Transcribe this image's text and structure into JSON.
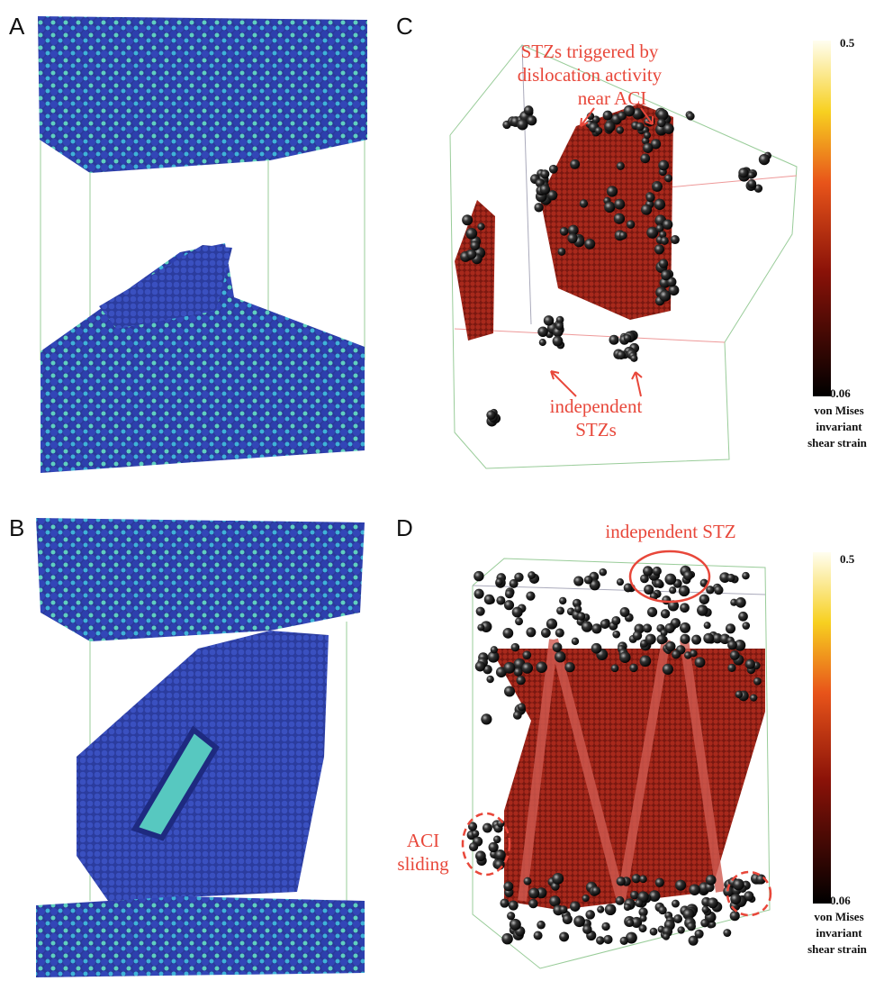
{
  "panels": [
    {
      "label": "A"
    },
    {
      "label": "B"
    },
    {
      "label": "C",
      "annotations": [
        {
          "lines": [
            "STZs triggered by",
            "dislocation activity",
            "near ACI"
          ]
        },
        {
          "lines": [
            "independent",
            "STZs"
          ]
        }
      ],
      "colorbar": {
        "max": 0.5,
        "min": 0.06,
        "label": [
          "von Mises",
          "invariant",
          "shear strain"
        ]
      }
    },
    {
      "label": "D",
      "annotations": [
        {
          "lines": [
            "independent STZ"
          ]
        },
        {
          "lines": [
            "ACI",
            "sliding"
          ]
        }
      ],
      "colorbar": {
        "max": 0.5,
        "min": 0.06,
        "label": [
          "von Mises",
          "invariant",
          "shear strain"
        ]
      }
    }
  ]
}
